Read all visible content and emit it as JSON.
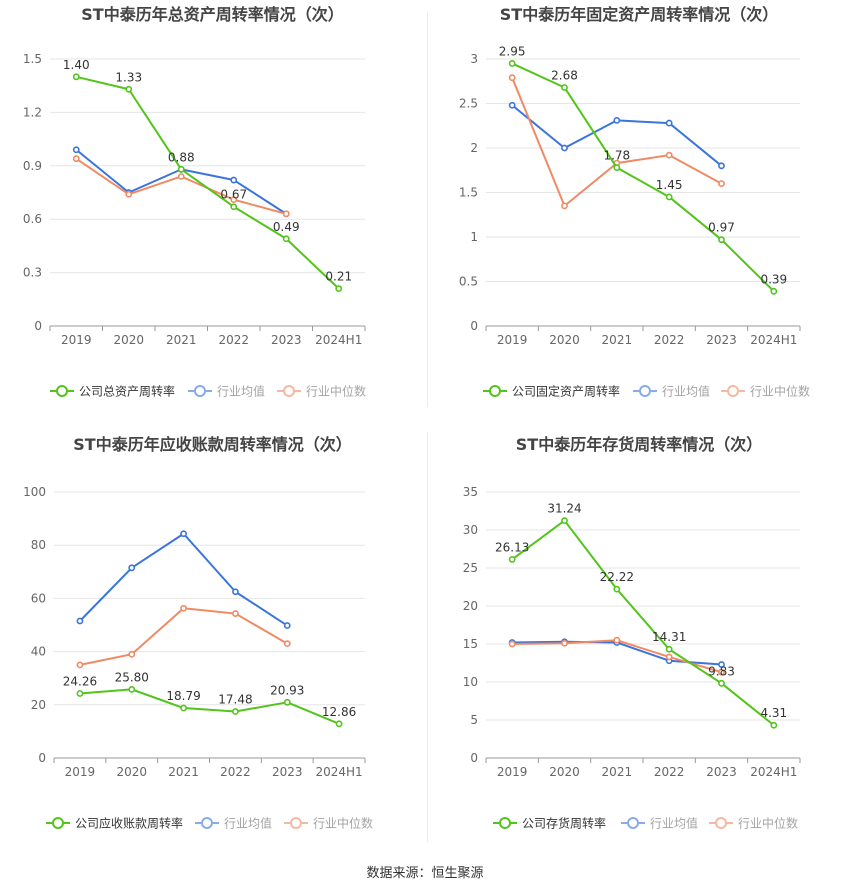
{
  "source_label": "数据来源：恒生聚源",
  "colors": {
    "company": "#52c41a",
    "avg": "#3a75dc",
    "median": "#f08a64"
  },
  "chart_data": [
    {
      "type": "line",
      "title": "ST中泰历年总资产周转率情况（次）",
      "categories": [
        "2019",
        "2020",
        "2021",
        "2022",
        "2023",
        "2024H1"
      ],
      "ylim": [
        0,
        1.5
      ],
      "yticks": [
        "0",
        "0.3",
        "0.6",
        "0.9",
        "1.2",
        "1.5"
      ],
      "series": [
        {
          "name": "公司总资产周转率",
          "values": [
            1.4,
            1.33,
            0.88,
            0.67,
            0.49,
            0.21
          ],
          "labels": [
            "1.40",
            "1.33",
            "0.88",
            "0.67",
            "0.49",
            "0.21"
          ]
        },
        {
          "name": "行业均值",
          "values": [
            0.99,
            0.75,
            0.88,
            0.82,
            0.63,
            null
          ]
        },
        {
          "name": "行业中位数",
          "values": [
            0.94,
            0.74,
            0.84,
            0.71,
            0.63,
            null
          ]
        }
      ]
    },
    {
      "type": "line",
      "title": "ST中泰历年固定资产周转率情况（次）",
      "categories": [
        "2019",
        "2020",
        "2021",
        "2022",
        "2023",
        "2024H1"
      ],
      "ylim": [
        0,
        3
      ],
      "yticks": [
        "0",
        "0.5",
        "1",
        "1.5",
        "2",
        "2.5",
        "3"
      ],
      "series": [
        {
          "name": "公司固定资产周转率",
          "values": [
            2.95,
            2.68,
            1.78,
            1.45,
            0.97,
            0.39
          ],
          "labels": [
            "2.95",
            "2.68",
            "1.78",
            "1.45",
            "0.97",
            "0.39"
          ]
        },
        {
          "name": "行业均值",
          "values": [
            2.48,
            2.0,
            2.31,
            2.28,
            1.8,
            null
          ]
        },
        {
          "name": "行业中位数",
          "values": [
            2.79,
            1.35,
            1.83,
            1.92,
            1.6,
            null
          ]
        }
      ]
    },
    {
      "type": "line",
      "title": "ST中泰历年应收账款周转率情况（次）",
      "categories": [
        "2019",
        "2020",
        "2021",
        "2022",
        "2023",
        "2024H1"
      ],
      "ylim": [
        0,
        100
      ],
      "yticks": [
        "0",
        "20",
        "40",
        "60",
        "80",
        "100"
      ],
      "series": [
        {
          "name": "公司应收账款周转率",
          "values": [
            24.26,
            25.8,
            18.79,
            17.48,
            20.93,
            12.86
          ],
          "labels": [
            "24.26",
            "25.80",
            "18.79",
            "17.48",
            "20.93",
            "12.86"
          ]
        },
        {
          "name": "行业均值",
          "values": [
            51.5,
            71.5,
            84.3,
            62.5,
            49.8,
            null
          ]
        },
        {
          "name": "行业中位数",
          "values": [
            35.0,
            39.0,
            56.3,
            54.3,
            43.0,
            null
          ]
        }
      ]
    },
    {
      "type": "line",
      "title": "ST中泰历年存货周转率情况（次）",
      "categories": [
        "2019",
        "2020",
        "2021",
        "2022",
        "2023",
        "2024H1"
      ],
      "ylim": [
        0,
        35
      ],
      "yticks": [
        "0",
        "5",
        "10",
        "15",
        "20",
        "25",
        "30",
        "35"
      ],
      "series": [
        {
          "name": "公司存货周转率",
          "values": [
            26.13,
            31.24,
            22.22,
            14.31,
            9.83,
            4.31
          ],
          "labels": [
            "26.13",
            "31.24",
            "22.22",
            "14.31",
            "9.83",
            "4.31"
          ]
        },
        {
          "name": "行业均值",
          "values": [
            15.2,
            15.3,
            15.2,
            12.8,
            12.3,
            null
          ]
        },
        {
          "name": "行业中位数",
          "values": [
            15.0,
            15.1,
            15.5,
            13.3,
            11.3,
            null
          ]
        }
      ]
    }
  ]
}
